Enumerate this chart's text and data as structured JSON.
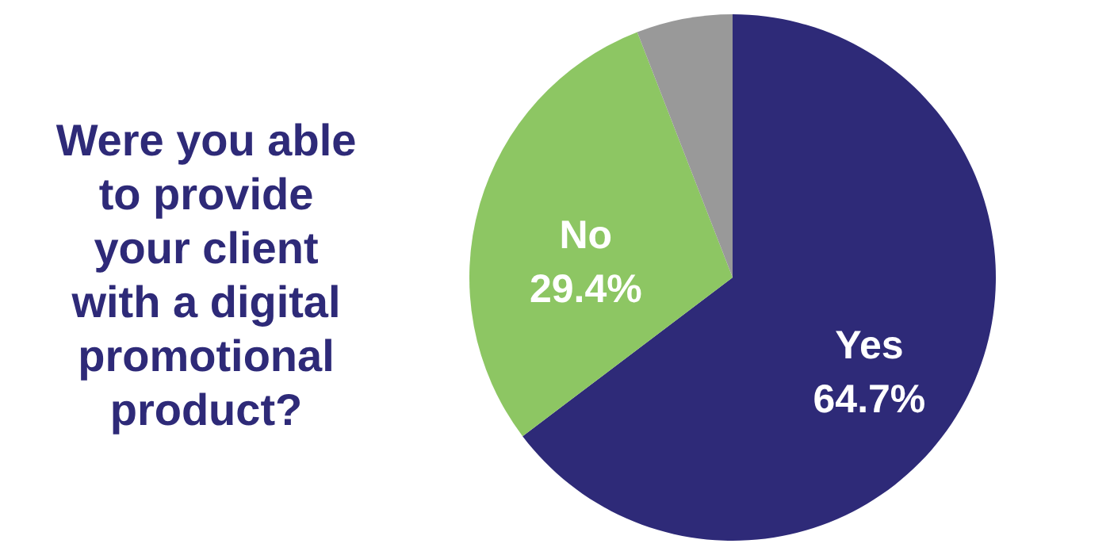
{
  "chart_data": {
    "type": "pie",
    "title": "Were you able to provide your client with a digital promotional product?",
    "categories": [
      "Yes",
      "No",
      null
    ],
    "values": [
      64.7,
      29.4,
      5.9
    ],
    "colors": [
      "#2e2a78",
      "#8dc663",
      "#999999"
    ],
    "value_labels": [
      "64.7%",
      "29.4%",
      null
    ]
  }
}
